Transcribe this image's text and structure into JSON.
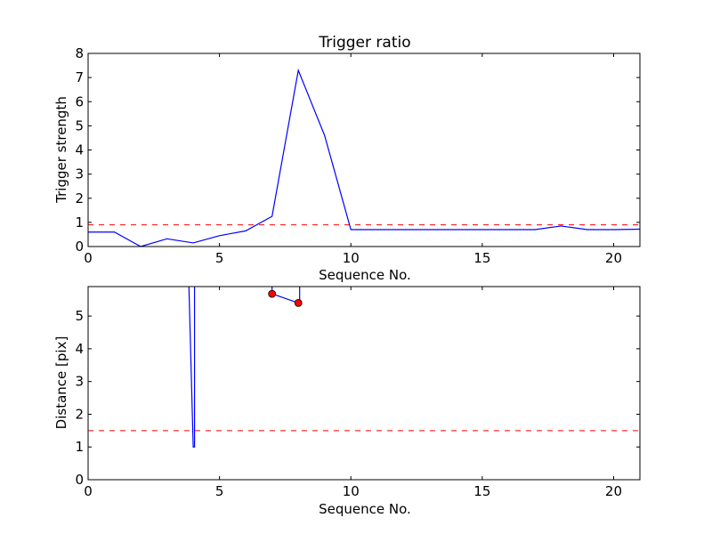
{
  "chart_data": [
    {
      "type": "line",
      "title": "Trigger ratio",
      "xlabel": "Sequence No.",
      "ylabel": "Trigger strength",
      "xlim": [
        0,
        21
      ],
      "ylim": [
        0,
        8
      ],
      "xticks": [
        0,
        5,
        10,
        15,
        20
      ],
      "yticks": [
        0,
        1,
        2,
        3,
        4,
        5,
        6,
        7,
        8
      ],
      "grid": false,
      "series": [
        {
          "color": "#0000ff",
          "style": "solid",
          "x": [
            0,
            1,
            2,
            3,
            4,
            5,
            6,
            7,
            8,
            9,
            10,
            11,
            12,
            13,
            14,
            15,
            16,
            17,
            18,
            19,
            20,
            21
          ],
          "y": [
            0.6,
            0.6,
            0.0,
            0.32,
            0.15,
            0.45,
            0.65,
            1.25,
            7.3,
            4.6,
            0.7,
            0.7,
            0.7,
            0.7,
            0.7,
            0.7,
            0.7,
            0.7,
            0.85,
            0.7,
            0.7,
            0.72
          ]
        }
      ],
      "hlines": [
        {
          "y": 0.9,
          "color": "#ff0000",
          "style": "dashed"
        }
      ]
    },
    {
      "type": "line",
      "title": "",
      "xlabel": "Sequence No.",
      "ylabel": "Distance [pix]",
      "xlim": [
        0,
        21
      ],
      "ylim": [
        0,
        5.9
      ],
      "xticks": [
        0,
        5,
        10,
        15,
        20
      ],
      "yticks": [
        0,
        1,
        2,
        3,
        4,
        5
      ],
      "grid": false,
      "series": [
        {
          "color": "#0000ff",
          "style": "solid",
          "x": [
            3.8,
            4.0,
            4.05,
            4.05
          ],
          "y": [
            7,
            1.0,
            1.0,
            7
          ]
        },
        {
          "color": "#0000ff",
          "style": "solid",
          "marker": "circle",
          "marker_color": "#ff0000",
          "marker_points": [
            0,
            1
          ],
          "x": [
            7.0,
            8.0,
            8.05,
            8.05,
            7.0,
            7.0
          ],
          "y": [
            5.68,
            5.4,
            5.4,
            7,
            7,
            5.68
          ]
        }
      ],
      "hlines": [
        {
          "y": 1.5,
          "color": "#ff0000",
          "style": "dashed"
        }
      ]
    }
  ]
}
